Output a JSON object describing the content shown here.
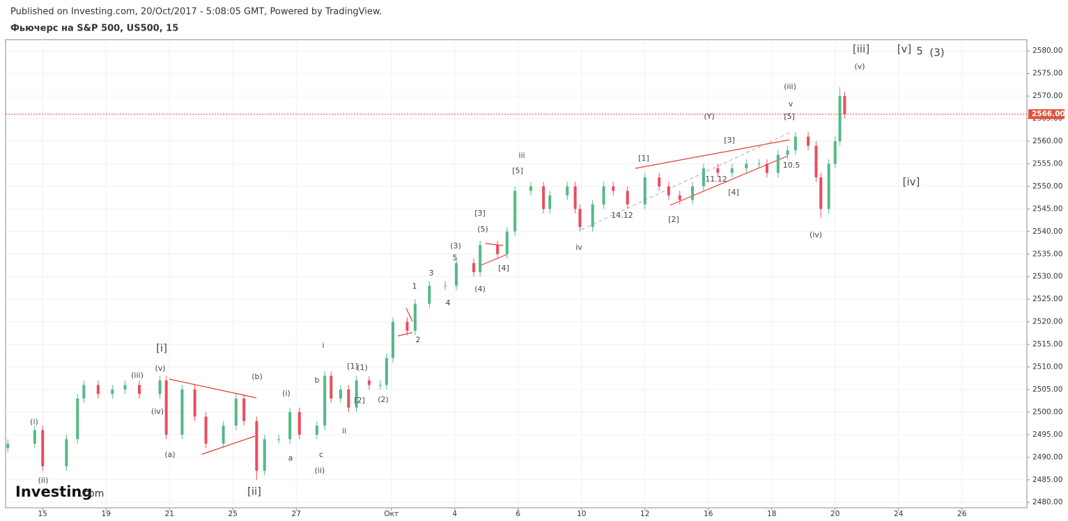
{
  "chart_data": {
    "type": "candlestick",
    "published": "Published on Investing.com, 20/Oct/2017 - 5:08:05 GMT, Powered by TradingView.",
    "title": "Фьючерс на S&P 500, US500, 15",
    "logo": "Investing",
    "logo_suffix": ".com",
    "up_color": "#53b987",
    "down_color": "#eb4d5c",
    "grid": true,
    "xlim": [
      -1.17,
      31.05
    ],
    "ylim": [
      2478.8,
      2582.5
    ],
    "xticks": [
      {
        "value": 0,
        "label": "15"
      },
      {
        "value": 2,
        "label": "19"
      },
      {
        "value": 4,
        "label": "21"
      },
      {
        "value": 6,
        "label": "25"
      },
      {
        "value": 8,
        "label": "27"
      },
      {
        "value": 11,
        "label": "Окт"
      },
      {
        "value": 13,
        "label": "4"
      },
      {
        "value": 15,
        "label": "6"
      },
      {
        "value": 17,
        "label": "10"
      },
      {
        "value": 19,
        "label": "12"
      },
      {
        "value": 21,
        "label": "16"
      },
      {
        "value": 23,
        "label": "18"
      },
      {
        "value": 25,
        "label": "20"
      },
      {
        "value": 27,
        "label": "24"
      },
      {
        "value": 29,
        "label": "26"
      }
    ],
    "yticks": [
      {
        "value": 2480,
        "label": "2480.00"
      },
      {
        "value": 2485,
        "label": "2485.00"
      },
      {
        "value": 2490,
        "label": "2490.00"
      },
      {
        "value": 2495,
        "label": "2495.00"
      },
      {
        "value": 2500,
        "label": "2500.00"
      },
      {
        "value": 2505,
        "label": "2505.00"
      },
      {
        "value": 2510,
        "label": "2510.00"
      },
      {
        "value": 2515,
        "label": "2515.00"
      },
      {
        "value": 2520,
        "label": "2520.00"
      },
      {
        "value": 2525,
        "label": "2525.00"
      },
      {
        "value": 2530,
        "label": "2530.00"
      },
      {
        "value": 2535,
        "label": "2535.00"
      },
      {
        "value": 2540,
        "label": "2540.00"
      },
      {
        "value": 2545,
        "label": "2545.00"
      },
      {
        "value": 2550,
        "label": "2550.00"
      },
      {
        "value": 2555,
        "label": "2555.00"
      },
      {
        "value": 2560,
        "label": "2560.00"
      },
      {
        "value": 2565,
        "label": "2565.00"
      },
      {
        "value": 2570,
        "label": "2570.00"
      },
      {
        "value": 2575,
        "label": "2575.00"
      },
      {
        "value": 2580,
        "label": "2580.00"
      }
    ],
    "last_price": 2566,
    "last_price_label": "2566.00",
    "x": [
      -1.1,
      -0.25,
      0,
      0.75,
      1.1,
      1.3,
      1.75,
      2.2,
      2.6,
      3.05,
      3.7,
      3.9,
      4.4,
      4.8,
      5.15,
      5.7,
      6.1,
      6.35,
      6.75,
      7.0,
      7.45,
      7.8,
      8.1,
      8.65,
      8.9,
      9.1,
      9.4,
      9.65,
      9.9,
      10.3,
      10.65,
      10.85,
      11.05,
      11.5,
      11.75,
      12.2,
      12.7,
      13.05,
      13.6,
      13.8,
      14.35,
      14.65,
      14.9,
      15.4,
      15.8,
      16.0,
      16.55,
      16.8,
      16.95,
      17.35,
      17.7,
      18.0,
      18.45,
      19.0,
      19.45,
      19.75,
      20.1,
      20.5,
      20.85,
      21.3,
      21.75,
      22.2,
      22.6,
      22.85,
      23.2,
      23.5,
      23.75,
      24.15,
      24.4,
      24.55,
      24.8,
      25.0,
      25.15,
      25.3
    ],
    "open": [
      2492,
      2493,
      2496,
      2488,
      2494,
      2503,
      2506,
      2504,
      2505,
      2506,
      2504,
      2507,
      2495,
      2505,
      2499,
      2493,
      2497,
      2503,
      2498,
      2487,
      2494,
      2494,
      2500,
      2495,
      2497,
      2508,
      2503,
      2505,
      2501,
      2507,
      2506,
      2506,
      2512,
      2520,
      2518,
      2524,
      2528,
      2528,
      2533,
      2531,
      2537,
      2535,
      2540,
      2549,
      2550,
      2545,
      2548,
      2550,
      2545,
      2541,
      2546,
      2550,
      2549,
      2546,
      2552,
      2550,
      2548,
      2547,
      2550,
      2554,
      2553,
      2554,
      2555,
      2555,
      2553,
      2557,
      2558,
      2561,
      2559,
      2552,
      2545,
      2555,
      2560,
      2570
    ],
    "high": [
      2494,
      2497,
      2497,
      2495,
      2504,
      2507,
      2507,
      2506,
      2507,
      2507,
      2508,
      2508,
      2506,
      2506,
      2500,
      2498,
      2504,
      2504,
      2499,
      2495,
      2495,
      2501,
      2501,
      2498,
      2509,
      2509,
      2506,
      2506,
      2508,
      2508,
      2507,
      2513,
      2521,
      2521,
      2525,
      2529,
      2529,
      2534,
      2534,
      2538,
      2538,
      2541,
      2550,
      2551,
      2551,
      2549,
      2551,
      2551,
      2546,
      2547,
      2551,
      2551,
      2550,
      2553,
      2553,
      2551,
      2549,
      2551,
      2555,
      2555,
      2555,
      2556,
      2556,
      2556,
      2558,
      2559,
      2562,
      2562,
      2560,
      2553,
      2556,
      2561,
      2572,
      2571
    ],
    "low": [
      2491,
      2492,
      2487,
      2487,
      2493,
      2502,
      2503,
      2503,
      2504,
      2503,
      2503,
      2494,
      2494,
      2498,
      2492,
      2492,
      2496,
      2497,
      2485,
      2486,
      2493,
      2493,
      2494,
      2494,
      2496,
      2502,
      2502,
      2500,
      2500,
      2505,
      2505,
      2505,
      2511,
      2517,
      2517,
      2523,
      2527,
      2527,
      2530,
      2530,
      2534,
      2534,
      2539,
      2548,
      2544,
      2544,
      2547,
      2544,
      2540,
      2540,
      2545,
      2548,
      2545,
      2545,
      2549,
      2547,
      2546,
      2546,
      2549,
      2552,
      2552,
      2553,
      2554,
      2552,
      2552,
      2556,
      2557,
      2558,
      2551,
      2543,
      2544,
      2554,
      2559,
      2565
    ],
    "close": [
      2493,
      2496,
      2488,
      2494,
      2503,
      2506,
      2504,
      2505,
      2506,
      2504,
      2507,
      2495,
      2505,
      2499,
      2493,
      2497,
      2503,
      2498,
      2487,
      2494,
      2494,
      2500,
      2495,
      2497,
      2508,
      2503,
      2505,
      2501,
      2507,
      2506,
      2506,
      2512,
      2520,
      2518,
      2524,
      2528,
      2528,
      2533,
      2531,
      2537,
      2535,
      2540,
      2549,
      2550,
      2545,
      2548,
      2550,
      2545,
      2541,
      2546,
      2550,
      2549,
      2546,
      2552,
      2550,
      2548,
      2547,
      2550,
      2554,
      2553,
      2554,
      2555,
      2555,
      2553,
      2557,
      2558,
      2561,
      2559,
      2552,
      2545,
      2555,
      2560,
      2570,
      2566
    ],
    "annotations": [
      "(i)",
      "(ii)",
      "(iii)",
      "(v)",
      "[i]",
      "(iv)",
      "(a)",
      "(b)",
      "[ii]",
      "(i)",
      "a",
      "b",
      "c",
      "(ii)",
      "i",
      "ii",
      "[1]",
      "(1)",
      "[2]",
      "(2)",
      "1",
      "2",
      "3",
      "4",
      "5",
      "(3)",
      "(4)",
      "(5)",
      "[3]",
      "[4]",
      "[5]",
      "iii",
      "iv",
      "14.12",
      "[1]",
      "[2]",
      "(Y)",
      "11.12",
      "[3]",
      "[4]",
      "10.5",
      "[5]",
      "v",
      "(iii)",
      "(iv)",
      "(v)",
      "[iii]",
      "[v]",
      "5",
      "(3)",
      "[iv]"
    ]
  }
}
